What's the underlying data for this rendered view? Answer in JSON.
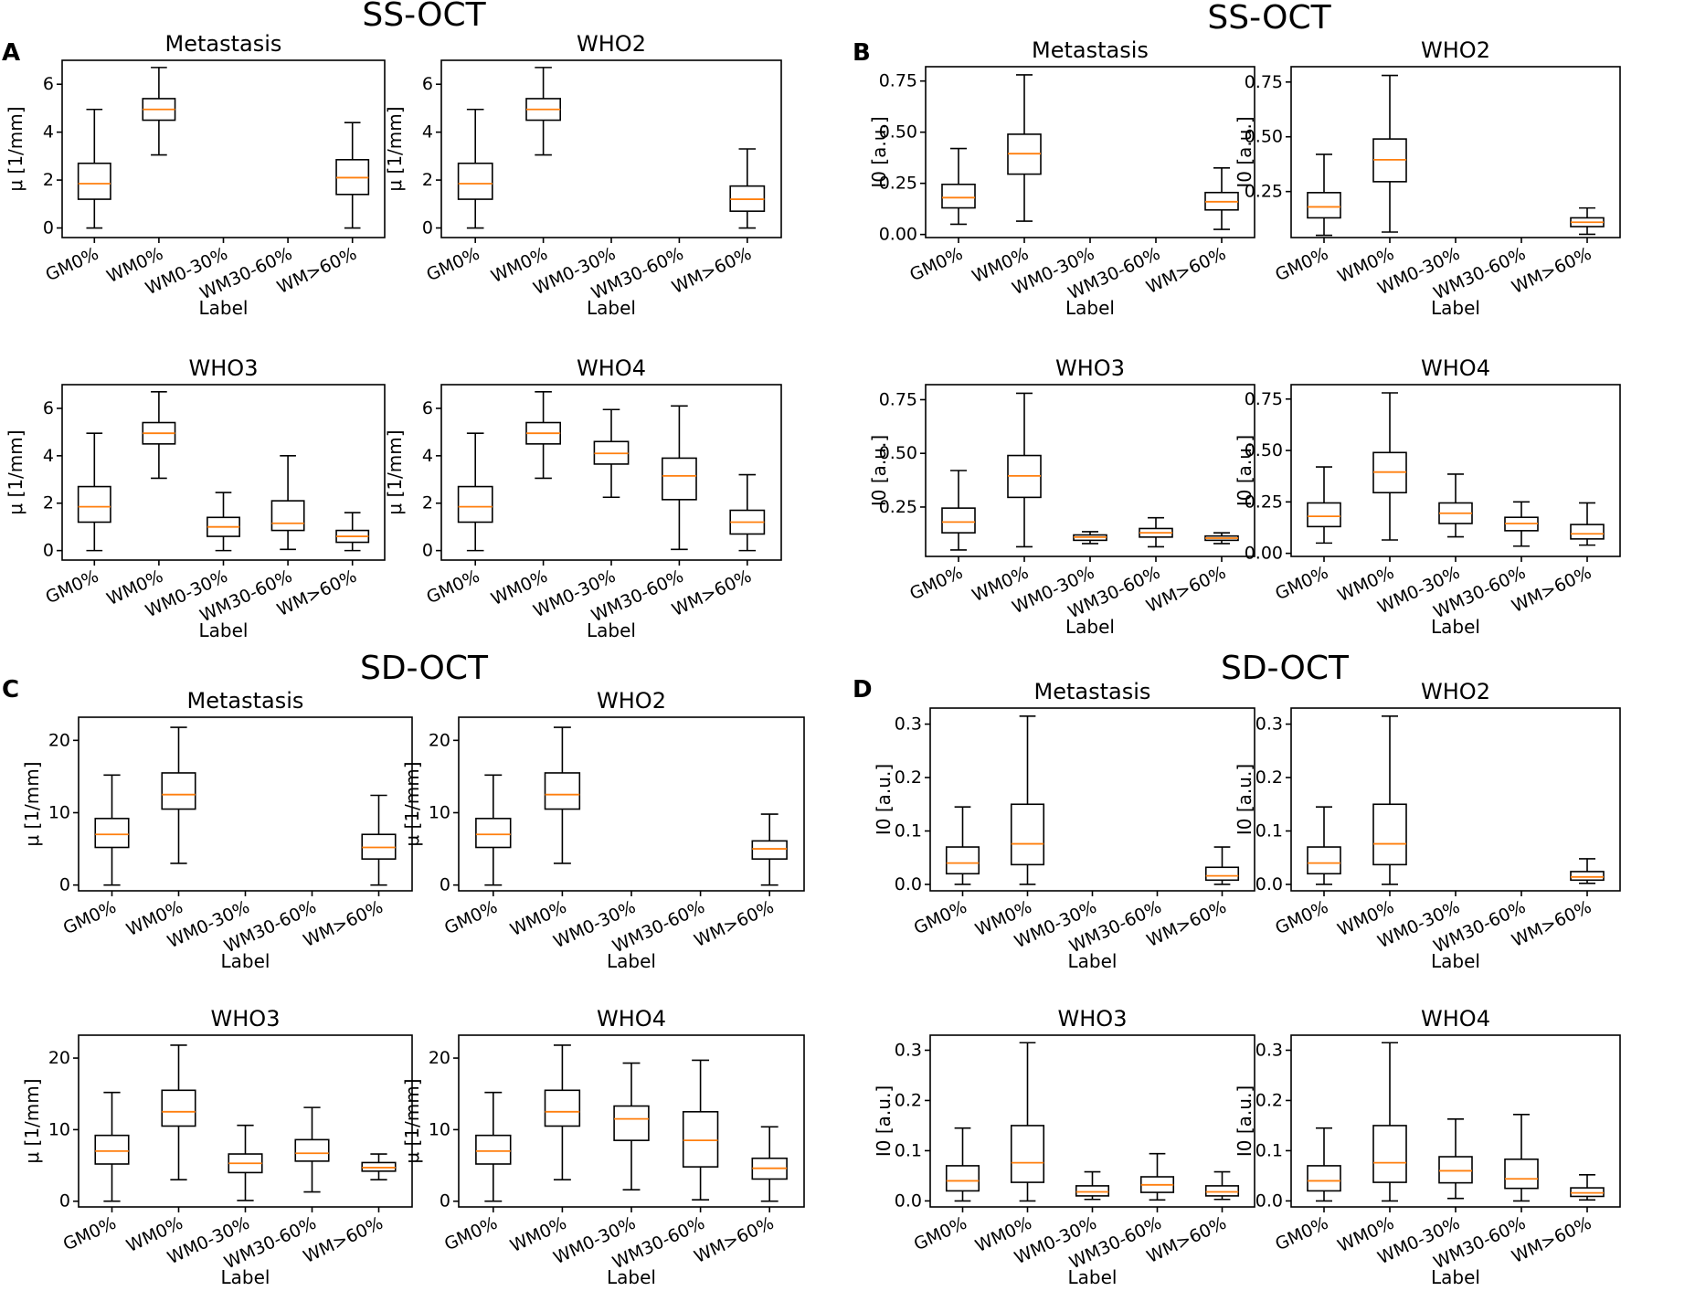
{
  "figure": {
    "panels": [
      {
        "letter": "A",
        "title": "SS-OCT"
      },
      {
        "letter": "B",
        "title": "SS-OCT"
      },
      {
        "letter": "C",
        "title": "SD-OCT"
      },
      {
        "letter": "D",
        "title": "SD-OCT"
      }
    ]
  },
  "chart_data": [
    {
      "type": "box",
      "panel": "A",
      "title": "Metastasis",
      "xlabel": "Label",
      "ylabel": "μ [1/mm]",
      "ylim": [
        -0.4,
        7.0
      ],
      "yticks": [
        0,
        2,
        4,
        6
      ],
      "ytick_labels": [
        "0",
        "2",
        "4",
        "6"
      ],
      "categories": [
        "GM0%",
        "WM0%",
        "WM0-30%",
        "WM30-60%",
        "WM>60%"
      ],
      "boxes": [
        {
          "whislo": 0.0,
          "q1": 1.2,
          "med": 1.85,
          "q3": 2.7,
          "whishi": 4.95
        },
        {
          "whislo": 3.05,
          "q1": 4.5,
          "med": 4.95,
          "q3": 5.4,
          "whishi": 6.7
        },
        null,
        null,
        {
          "whislo": 0.0,
          "q1": 1.4,
          "med": 2.1,
          "q3": 2.85,
          "whishi": 4.4
        }
      ]
    },
    {
      "type": "box",
      "panel": "A",
      "title": "WHO2",
      "xlabel": "Label",
      "ylabel": "μ [1/mm]",
      "ylim": [
        -0.4,
        7.0
      ],
      "yticks": [
        0,
        2,
        4,
        6
      ],
      "ytick_labels": [
        "0",
        "2",
        "4",
        "6"
      ],
      "categories": [
        "GM0%",
        "WM0%",
        "WM0-30%",
        "WM30-60%",
        "WM>60%"
      ],
      "boxes": [
        {
          "whislo": 0.0,
          "q1": 1.2,
          "med": 1.85,
          "q3": 2.7,
          "whishi": 4.95
        },
        {
          "whislo": 3.05,
          "q1": 4.5,
          "med": 4.95,
          "q3": 5.4,
          "whishi": 6.7
        },
        null,
        null,
        {
          "whislo": 0.0,
          "q1": 0.7,
          "med": 1.2,
          "q3": 1.75,
          "whishi": 3.3
        }
      ]
    },
    {
      "type": "box",
      "panel": "A",
      "title": "WHO3",
      "xlabel": "Label",
      "ylabel": "μ [1/mm]",
      "ylim": [
        -0.4,
        7.0
      ],
      "yticks": [
        0,
        2,
        4,
        6
      ],
      "ytick_labels": [
        "0",
        "2",
        "4",
        "6"
      ],
      "categories": [
        "GM0%",
        "WM0%",
        "WM0-30%",
        "WM30-60%",
        "WM>60%"
      ],
      "boxes": [
        {
          "whislo": 0.0,
          "q1": 1.2,
          "med": 1.85,
          "q3": 2.7,
          "whishi": 4.95
        },
        {
          "whislo": 3.05,
          "q1": 4.5,
          "med": 4.95,
          "q3": 5.4,
          "whishi": 6.7
        },
        {
          "whislo": 0.0,
          "q1": 0.6,
          "med": 1.0,
          "q3": 1.4,
          "whishi": 2.45
        },
        {
          "whislo": 0.05,
          "q1": 0.85,
          "med": 1.15,
          "q3": 2.1,
          "whishi": 4.0
        },
        {
          "whislo": 0.0,
          "q1": 0.35,
          "med": 0.6,
          "q3": 0.85,
          "whishi": 1.6
        }
      ]
    },
    {
      "type": "box",
      "panel": "A",
      "title": "WHO4",
      "xlabel": "Label",
      "ylabel": "μ [1/mm]",
      "ylim": [
        -0.4,
        7.0
      ],
      "yticks": [
        0,
        2,
        4,
        6
      ],
      "ytick_labels": [
        "0",
        "2",
        "4",
        "6"
      ],
      "categories": [
        "GM0%",
        "WM0%",
        "WM0-30%",
        "WM30-60%",
        "WM>60%"
      ],
      "boxes": [
        {
          "whislo": 0.0,
          "q1": 1.2,
          "med": 1.85,
          "q3": 2.7,
          "whishi": 4.95
        },
        {
          "whislo": 3.05,
          "q1": 4.5,
          "med": 4.95,
          "q3": 5.4,
          "whishi": 6.7
        },
        {
          "whislo": 2.25,
          "q1": 3.65,
          "med": 4.1,
          "q3": 4.6,
          "whishi": 5.95
        },
        {
          "whislo": 0.05,
          "q1": 2.15,
          "med": 3.15,
          "q3": 3.9,
          "whishi": 6.1
        },
        {
          "whislo": 0.0,
          "q1": 0.7,
          "med": 1.2,
          "q3": 1.7,
          "whishi": 3.2
        }
      ]
    },
    {
      "type": "box",
      "panel": "B",
      "title": "Metastasis",
      "xlabel": "Label",
      "ylabel": "I0 [a.u.]",
      "ylim": [
        -0.015,
        0.82
      ],
      "yticks": [
        0,
        0.25,
        0.5,
        0.75
      ],
      "ytick_labels": [
        "0.00",
        "0.25",
        "0.50",
        "0.75"
      ],
      "categories": [
        "GM0%",
        "WM0%",
        "WM0-30%",
        "WM30-60%",
        "WM>60%"
      ],
      "boxes": [
        {
          "whislo": 0.05,
          "q1": 0.13,
          "med": 0.18,
          "q3": 0.245,
          "whishi": 0.42
        },
        {
          "whislo": 0.065,
          "q1": 0.295,
          "med": 0.395,
          "q3": 0.49,
          "whishi": 0.78
        },
        null,
        null,
        {
          "whislo": 0.025,
          "q1": 0.12,
          "med": 0.16,
          "q3": 0.205,
          "whishi": 0.325
        }
      ]
    },
    {
      "type": "box",
      "panel": "B",
      "title": "WHO2",
      "xlabel": "Label",
      "ylabel": "I0 [a.u.]",
      "ylim": [
        0.04,
        0.82
      ],
      "yticks": [
        0.25,
        0.5,
        0.75
      ],
      "ytick_labels": [
        "0.25",
        "0.50",
        "0.75"
      ],
      "categories": [
        "GM0%",
        "WM0%",
        "WM0-30%",
        "WM30-60%",
        "WM>60%"
      ],
      "boxes": [
        {
          "whislo": 0.05,
          "q1": 0.13,
          "med": 0.18,
          "q3": 0.245,
          "whishi": 0.42
        },
        {
          "whislo": 0.065,
          "q1": 0.295,
          "med": 0.395,
          "q3": 0.49,
          "whishi": 0.78
        },
        null,
        null,
        {
          "whislo": 0.055,
          "q1": 0.09,
          "med": 0.11,
          "q3": 0.13,
          "whishi": 0.175
        }
      ]
    },
    {
      "type": "box",
      "panel": "B",
      "title": "WHO3",
      "xlabel": "Label",
      "ylabel": "I0 [a.u.]",
      "ylim": [
        0.02,
        0.82
      ],
      "yticks": [
        0.25,
        0.5,
        0.75
      ],
      "ytick_labels": [
        "0.25",
        "0.50",
        "0.75"
      ],
      "categories": [
        "GM0%",
        "WM0%",
        "WM0-30%",
        "WM30-60%",
        "WM>60%"
      ],
      "boxes": [
        {
          "whislo": 0.05,
          "q1": 0.13,
          "med": 0.18,
          "q3": 0.245,
          "whishi": 0.42
        },
        {
          "whislo": 0.065,
          "q1": 0.295,
          "med": 0.395,
          "q3": 0.49,
          "whishi": 0.78
        },
        {
          "whislo": 0.08,
          "q1": 0.095,
          "med": 0.11,
          "q3": 0.12,
          "whishi": 0.135
        },
        {
          "whislo": 0.065,
          "q1": 0.11,
          "med": 0.13,
          "q3": 0.15,
          "whishi": 0.2
        },
        {
          "whislo": 0.08,
          "q1": 0.095,
          "med": 0.105,
          "q3": 0.115,
          "whishi": 0.13
        }
      ]
    },
    {
      "type": "box",
      "panel": "B",
      "title": "WHO4",
      "xlabel": "Label",
      "ylabel": "I0 [a.u.]",
      "ylim": [
        -0.015,
        0.82
      ],
      "yticks": [
        0,
        0.25,
        0.5,
        0.75
      ],
      "ytick_labels": [
        "0.00",
        "0.25",
        "0.50",
        "0.75"
      ],
      "categories": [
        "GM0%",
        "WM0%",
        "WM0-30%",
        "WM30-60%",
        "WM>60%"
      ],
      "boxes": [
        {
          "whislo": 0.05,
          "q1": 0.13,
          "med": 0.18,
          "q3": 0.245,
          "whishi": 0.42
        },
        {
          "whislo": 0.065,
          "q1": 0.295,
          "med": 0.395,
          "q3": 0.49,
          "whishi": 0.78
        },
        {
          "whislo": 0.08,
          "q1": 0.145,
          "med": 0.195,
          "q3": 0.245,
          "whishi": 0.385
        },
        {
          "whislo": 0.035,
          "q1": 0.11,
          "med": 0.145,
          "q3": 0.175,
          "whishi": 0.25
        },
        {
          "whislo": 0.04,
          "q1": 0.07,
          "med": 0.095,
          "q3": 0.14,
          "whishi": 0.245
        }
      ]
    },
    {
      "type": "box",
      "panel": "C",
      "title": "Metastasis",
      "xlabel": "Label",
      "ylabel": "μ [1/mm]",
      "ylim": [
        -0.8,
        23.2
      ],
      "yticks": [
        0,
        10,
        20
      ],
      "ytick_labels": [
        "0",
        "10",
        "20"
      ],
      "categories": [
        "GM0%",
        "WM0%",
        "WM0-30%",
        "WM30-60%",
        "WM>60%"
      ],
      "boxes": [
        {
          "whislo": 0.0,
          "q1": 5.2,
          "med": 7.0,
          "q3": 9.2,
          "whishi": 15.2
        },
        {
          "whislo": 3.0,
          "q1": 10.5,
          "med": 12.5,
          "q3": 15.5,
          "whishi": 21.8
        },
        null,
        null,
        {
          "whislo": 0.0,
          "q1": 3.6,
          "med": 5.2,
          "q3": 7.0,
          "whishi": 12.4
        }
      ]
    },
    {
      "type": "box",
      "panel": "C",
      "title": "WHO2",
      "xlabel": "Label",
      "ylabel": "μ [1/mm]",
      "ylim": [
        -0.8,
        23.2
      ],
      "yticks": [
        0,
        10,
        20
      ],
      "ytick_labels": [
        "0",
        "10",
        "20"
      ],
      "categories": [
        "GM0%",
        "WM0%",
        "WM0-30%",
        "WM30-60%",
        "WM>60%"
      ],
      "boxes": [
        {
          "whislo": 0.0,
          "q1": 5.2,
          "med": 7.0,
          "q3": 9.2,
          "whishi": 15.2
        },
        {
          "whislo": 3.0,
          "q1": 10.5,
          "med": 12.5,
          "q3": 15.5,
          "whishi": 21.8
        },
        null,
        null,
        {
          "whislo": 0.0,
          "q1": 3.6,
          "med": 5.0,
          "q3": 6.1,
          "whishi": 9.8
        }
      ]
    },
    {
      "type": "box",
      "panel": "C",
      "title": "WHO3",
      "xlabel": "Label",
      "ylabel": "μ [1/mm]",
      "ylim": [
        -0.8,
        23.2
      ],
      "yticks": [
        0,
        10,
        20
      ],
      "ytick_labels": [
        "0",
        "10",
        "20"
      ],
      "categories": [
        "GM0%",
        "WM0%",
        "WM0-30%",
        "WM30-60%",
        "WM>60%"
      ],
      "boxes": [
        {
          "whislo": 0.0,
          "q1": 5.2,
          "med": 7.0,
          "q3": 9.2,
          "whishi": 15.2
        },
        {
          "whislo": 3.0,
          "q1": 10.5,
          "med": 12.5,
          "q3": 15.5,
          "whishi": 21.8
        },
        {
          "whislo": 0.1,
          "q1": 4.0,
          "med": 5.3,
          "q3": 6.6,
          "whishi": 10.6
        },
        {
          "whislo": 1.3,
          "q1": 5.6,
          "med": 6.7,
          "q3": 8.6,
          "whishi": 13.1
        },
        {
          "whislo": 3.0,
          "q1": 4.2,
          "med": 4.7,
          "q3": 5.4,
          "whishi": 6.6
        }
      ]
    },
    {
      "type": "box",
      "panel": "C",
      "title": "WHO4",
      "xlabel": "Label",
      "ylabel": "μ [1/mm]",
      "ylim": [
        -0.8,
        23.2
      ],
      "yticks": [
        0,
        10,
        20
      ],
      "ytick_labels": [
        "0",
        "10",
        "20"
      ],
      "categories": [
        "GM0%",
        "WM0%",
        "WM0-30%",
        "WM30-60%",
        "WM>60%"
      ],
      "boxes": [
        {
          "whislo": 0.0,
          "q1": 5.2,
          "med": 7.0,
          "q3": 9.2,
          "whishi": 15.2
        },
        {
          "whislo": 3.0,
          "q1": 10.5,
          "med": 12.5,
          "q3": 15.5,
          "whishi": 21.8
        },
        {
          "whislo": 1.6,
          "q1": 8.5,
          "med": 11.5,
          "q3": 13.3,
          "whishi": 19.3
        },
        {
          "whislo": 0.2,
          "q1": 4.8,
          "med": 8.5,
          "q3": 12.5,
          "whishi": 19.7
        },
        {
          "whislo": 0.0,
          "q1": 3.1,
          "med": 4.6,
          "q3": 6.0,
          "whishi": 10.4
        }
      ]
    },
    {
      "type": "box",
      "panel": "D",
      "title": "Metastasis",
      "xlabel": "Label",
      "ylabel": "I0 [a.u.]",
      "ylim": [
        -0.012,
        0.33
      ],
      "yticks": [
        0,
        0.1,
        0.2,
        0.3
      ],
      "ytick_labels": [
        "0.0",
        "0.1",
        "0.2",
        "0.3"
      ],
      "categories": [
        "GM0%",
        "WM0%",
        "WM0-30%",
        "WM30-60%",
        "WM>60%"
      ],
      "boxes": [
        {
          "whislo": 0.0,
          "q1": 0.02,
          "med": 0.04,
          "q3": 0.07,
          "whishi": 0.145
        },
        {
          "whislo": 0.0,
          "q1": 0.037,
          "med": 0.076,
          "q3": 0.15,
          "whishi": 0.315
        },
        null,
        null,
        {
          "whislo": 0.0,
          "q1": 0.008,
          "med": 0.016,
          "q3": 0.032,
          "whishi": 0.07
        }
      ]
    },
    {
      "type": "box",
      "panel": "D",
      "title": "WHO2",
      "xlabel": "Label",
      "ylabel": "I0 [a.u.]",
      "ylim": [
        -0.012,
        0.33
      ],
      "yticks": [
        0,
        0.1,
        0.2,
        0.3
      ],
      "ytick_labels": [
        "0.0",
        "0.1",
        "0.2",
        "0.3"
      ],
      "categories": [
        "GM0%",
        "WM0%",
        "WM0-30%",
        "WM30-60%",
        "WM>60%"
      ],
      "boxes": [
        {
          "whislo": 0.0,
          "q1": 0.02,
          "med": 0.04,
          "q3": 0.07,
          "whishi": 0.145
        },
        {
          "whislo": 0.0,
          "q1": 0.037,
          "med": 0.076,
          "q3": 0.15,
          "whishi": 0.315
        },
        null,
        null,
        {
          "whislo": 0.002,
          "q1": 0.008,
          "med": 0.014,
          "q3": 0.024,
          "whishi": 0.048
        }
      ]
    },
    {
      "type": "box",
      "panel": "D",
      "title": "WHO3",
      "xlabel": "Label",
      "ylabel": "I0 [a.u.]",
      "ylim": [
        -0.012,
        0.33
      ],
      "yticks": [
        0,
        0.1,
        0.2,
        0.3
      ],
      "ytick_labels": [
        "0.0",
        "0.1",
        "0.2",
        "0.3"
      ],
      "categories": [
        "GM0%",
        "WM0%",
        "WM0-30%",
        "WM30-60%",
        "WM>60%"
      ],
      "boxes": [
        {
          "whislo": 0.0,
          "q1": 0.02,
          "med": 0.04,
          "q3": 0.07,
          "whishi": 0.145
        },
        {
          "whislo": 0.0,
          "q1": 0.037,
          "med": 0.076,
          "q3": 0.15,
          "whishi": 0.315
        },
        {
          "whislo": 0.003,
          "q1": 0.01,
          "med": 0.018,
          "q3": 0.03,
          "whishi": 0.058
        },
        {
          "whislo": 0.002,
          "q1": 0.017,
          "med": 0.032,
          "q3": 0.048,
          "whishi": 0.094
        },
        {
          "whislo": 0.003,
          "q1": 0.01,
          "med": 0.018,
          "q3": 0.03,
          "whishi": 0.058
        }
      ]
    },
    {
      "type": "box",
      "panel": "D",
      "title": "WHO4",
      "xlabel": "Label",
      "ylabel": "I0 [a.u.]",
      "ylim": [
        -0.012,
        0.33
      ],
      "yticks": [
        0,
        0.1,
        0.2,
        0.3
      ],
      "ytick_labels": [
        "0.0",
        "0.1",
        "0.2",
        "0.3"
      ],
      "categories": [
        "GM0%",
        "WM0%",
        "WM0-30%",
        "WM30-60%",
        "WM>60%"
      ],
      "boxes": [
        {
          "whislo": 0.0,
          "q1": 0.02,
          "med": 0.04,
          "q3": 0.07,
          "whishi": 0.145
        },
        {
          "whislo": 0.0,
          "q1": 0.037,
          "med": 0.076,
          "q3": 0.15,
          "whishi": 0.315
        },
        {
          "whislo": 0.005,
          "q1": 0.036,
          "med": 0.06,
          "q3": 0.088,
          "whishi": 0.163
        },
        {
          "whislo": 0.0,
          "q1": 0.025,
          "med": 0.044,
          "q3": 0.083,
          "whishi": 0.172
        },
        {
          "whislo": 0.002,
          "q1": 0.009,
          "med": 0.016,
          "q3": 0.026,
          "whishi": 0.052
        }
      ]
    }
  ]
}
